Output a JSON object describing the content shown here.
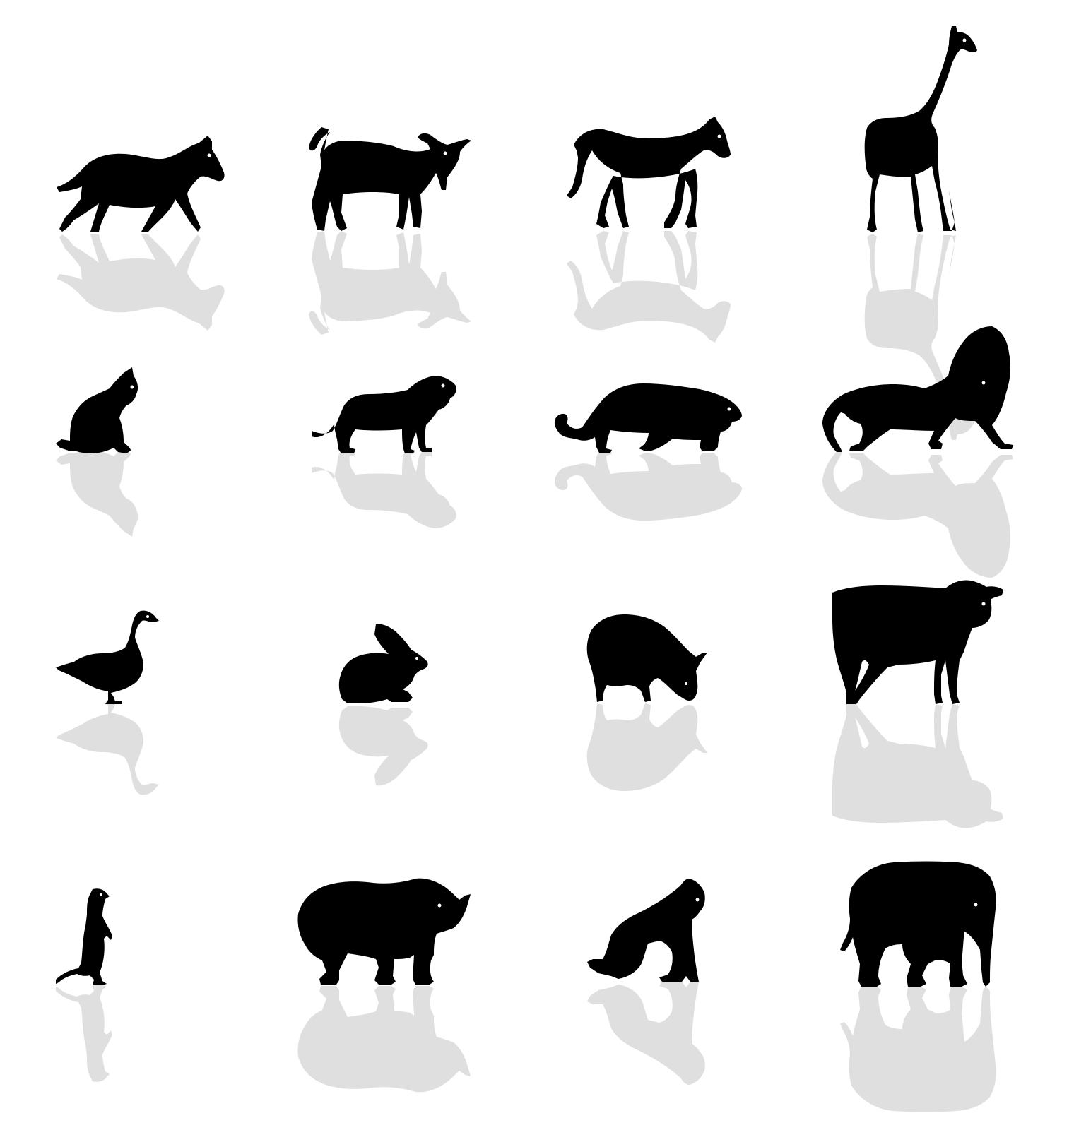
{
  "background_color": "#ffffff",
  "silhouette_color": "#000000",
  "reflection_color": "#8c8c8c",
  "reflection_opacity": 0.28,
  "icons": [
    {
      "name": "zebra-icon"
    },
    {
      "name": "goat-icon"
    },
    {
      "name": "horse-icon"
    },
    {
      "name": "giraffe-icon"
    },
    {
      "name": "cat-icon"
    },
    {
      "name": "tiger-cub-icon"
    },
    {
      "name": "leopard-icon"
    },
    {
      "name": "lion-icon"
    },
    {
      "name": "goose-icon"
    },
    {
      "name": "rabbit-icon"
    },
    {
      "name": "pig-icon"
    },
    {
      "name": "cow-icon"
    },
    {
      "name": "meerkat-icon"
    },
    {
      "name": "rhino-icon"
    },
    {
      "name": "gorilla-icon"
    },
    {
      "name": "elephant-icon"
    }
  ]
}
